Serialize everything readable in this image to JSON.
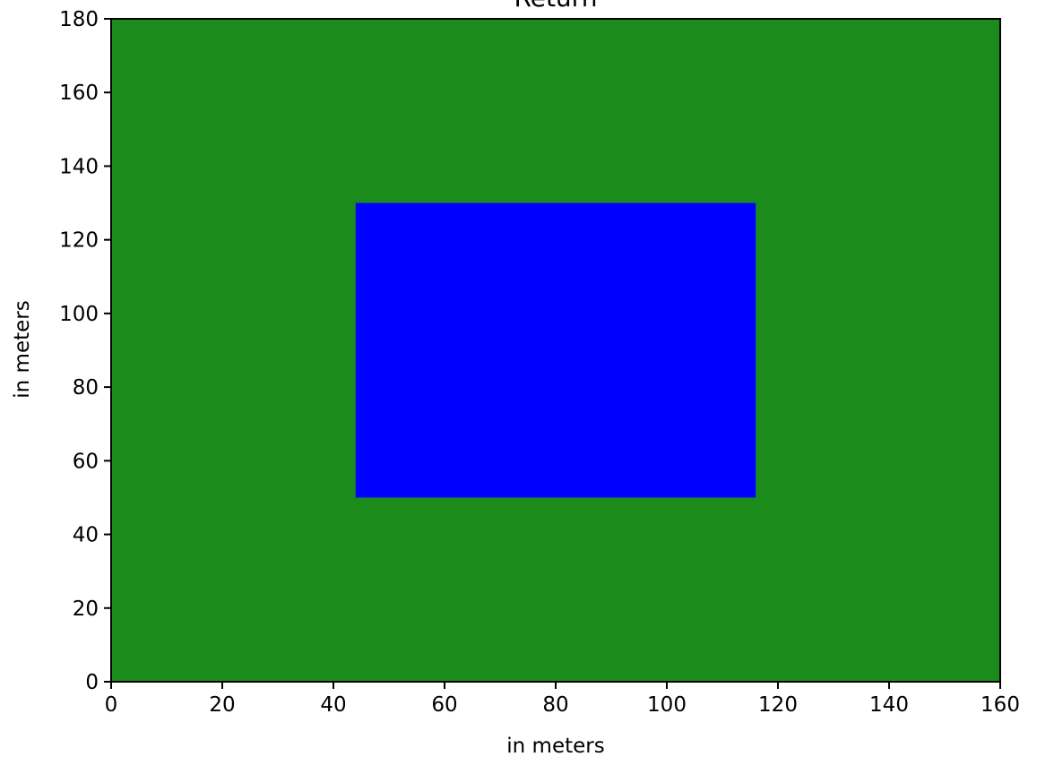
{
  "chart_data": {
    "type": "heatmap",
    "title": "Return",
    "xlabel": "in meters",
    "ylabel": "in meters",
    "xlim": [
      0,
      160
    ],
    "ylim": [
      0,
      180
    ],
    "xticks": [
      0,
      20,
      40,
      60,
      80,
      100,
      120,
      140,
      160
    ],
    "yticks": [
      0,
      20,
      40,
      60,
      80,
      100,
      120,
      140,
      160,
      180
    ],
    "grid": false,
    "regions": [
      {
        "x": [
          0,
          160
        ],
        "y": [
          0,
          180
        ],
        "color": "#1b8c1b"
      },
      {
        "x": [
          44,
          116
        ],
        "y": [
          50,
          130
        ],
        "color": "#0000ff"
      }
    ]
  }
}
